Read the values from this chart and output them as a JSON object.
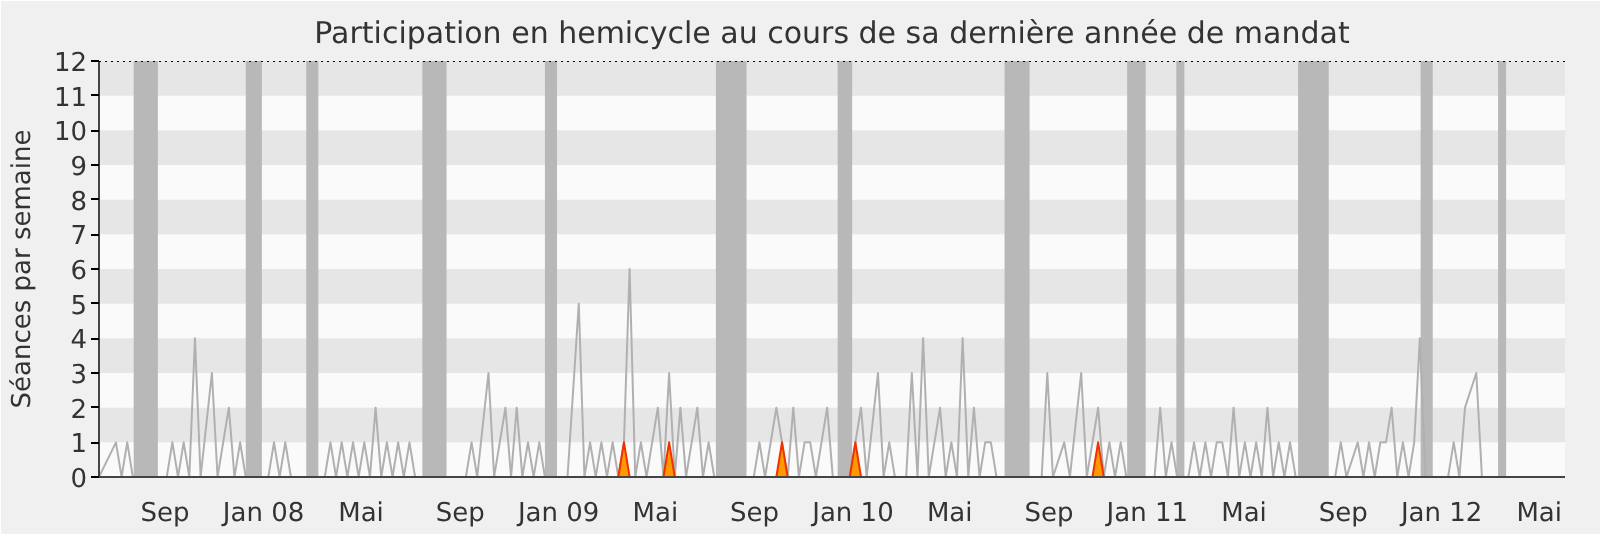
{
  "chart_data": {
    "type": "line",
    "title": "Participation en hemicycle au cours de sa dernière année de mandat",
    "ylabel": "Séances par semaine",
    "xlim": [
      "2007-06-11",
      "2012-06-02"
    ],
    "ylim": [
      0,
      12
    ],
    "yticks": [
      0,
      1,
      2,
      3,
      4,
      5,
      6,
      7,
      8,
      9,
      10,
      11,
      12
    ],
    "xticks": [
      {
        "value": "2007-09-01",
        "label": "Sep"
      },
      {
        "value": "2008-01-01",
        "label": "Jan 08"
      },
      {
        "value": "2008-05-01",
        "label": "Mai"
      },
      {
        "value": "2008-09-01",
        "label": "Sep"
      },
      {
        "value": "2009-01-01",
        "label": "Jan 09"
      },
      {
        "value": "2009-05-01",
        "label": "Mai"
      },
      {
        "value": "2009-09-01",
        "label": "Sep"
      },
      {
        "value": "2010-01-01",
        "label": "Jan 10"
      },
      {
        "value": "2010-05-01",
        "label": "Mai"
      },
      {
        "value": "2010-09-01",
        "label": "Sep"
      },
      {
        "value": "2011-01-01",
        "label": "Jan 11"
      },
      {
        "value": "2011-05-01",
        "label": "Mai"
      },
      {
        "value": "2011-09-01",
        "label": "Sep"
      },
      {
        "value": "2012-01-01",
        "label": "Jan 12"
      },
      {
        "value": "2012-05-01",
        "label": "Mai"
      }
    ],
    "series": [
      {
        "color": "#b0b0b0",
        "x": [
          "2007-06-11",
          "2007-07-02",
          "2007-07-09",
          "2007-07-16",
          "2007-07-23",
          "2007-09-03",
          "2007-09-10",
          "2007-09-17",
          "2007-09-24",
          "2007-10-01",
          "2007-10-08",
          "2007-10-15",
          "2007-10-29",
          "2007-11-05",
          "2007-11-19",
          "2007-11-26",
          "2007-12-03",
          "2007-12-10",
          "2008-01-07",
          "2008-01-14",
          "2008-01-21",
          "2008-01-28",
          "2008-02-04",
          "2008-03-17",
          "2008-03-24",
          "2008-03-31",
          "2008-04-07",
          "2008-04-14",
          "2008-04-21",
          "2008-04-28",
          "2008-05-05",
          "2008-05-12",
          "2008-05-19",
          "2008-05-26",
          "2008-06-02",
          "2008-06-09",
          "2008-06-16",
          "2008-06-23",
          "2008-06-30",
          "2008-07-07",
          "2008-09-08",
          "2008-09-15",
          "2008-09-22",
          "2008-10-06",
          "2008-10-13",
          "2008-10-27",
          "2008-11-03",
          "2008-11-10",
          "2008-11-17",
          "2008-11-24",
          "2008-12-01",
          "2008-12-08",
          "2008-12-15",
          "2009-01-12",
          "2009-01-26",
          "2009-02-02",
          "2009-02-09",
          "2009-02-16",
          "2009-02-23",
          "2009-03-02",
          "2009-03-09",
          "2009-03-16",
          "2009-03-23",
          "2009-03-30",
          "2009-04-06",
          "2009-04-13",
          "2009-04-20",
          "2009-05-04",
          "2009-05-11",
          "2009-05-18",
          "2009-05-25",
          "2009-06-01",
          "2009-06-08",
          "2009-06-22",
          "2009-06-29",
          "2009-07-06",
          "2009-07-13",
          "2009-08-31",
          "2009-09-07",
          "2009-09-14",
          "2009-09-28",
          "2009-10-05",
          "2009-10-12",
          "2009-10-19",
          "2009-10-26",
          "2009-11-02",
          "2009-11-09",
          "2009-11-16",
          "2009-11-30",
          "2009-12-07",
          "2009-12-28",
          "2010-01-04",
          "2010-01-11",
          "2010-01-18",
          "2010-02-01",
          "2010-02-08",
          "2010-02-15",
          "2010-02-22",
          "2010-03-08",
          "2010-03-15",
          "2010-03-22",
          "2010-03-29",
          "2010-04-05",
          "2010-04-19",
          "2010-04-26",
          "2010-05-03",
          "2010-05-10",
          "2010-05-17",
          "2010-05-24",
          "2010-05-31",
          "2010-06-07",
          "2010-06-14",
          "2010-06-21",
          "2010-06-28",
          "2010-08-23",
          "2010-08-30",
          "2010-09-06",
          "2010-09-20",
          "2010-09-27",
          "2010-10-11",
          "2010-10-18",
          "2010-11-01",
          "2010-11-08",
          "2010-11-15",
          "2010-11-22",
          "2010-11-29",
          "2010-12-06",
          "2011-01-10",
          "2011-01-17",
          "2011-01-24",
          "2011-01-31",
          "2011-02-07",
          "2011-02-21",
          "2011-02-28",
          "2011-03-07",
          "2011-03-14",
          "2011-03-21",
          "2011-03-28",
          "2011-04-04",
          "2011-04-11",
          "2011-04-18",
          "2011-04-25",
          "2011-05-02",
          "2011-05-09",
          "2011-05-16",
          "2011-05-23",
          "2011-05-30",
          "2011-06-06",
          "2011-06-13",
          "2011-06-20",
          "2011-06-27",
          "2011-07-04",
          "2011-08-22",
          "2011-08-29",
          "2011-09-05",
          "2011-09-19",
          "2011-09-26",
          "2011-10-03",
          "2011-10-10",
          "2011-10-17",
          "2011-10-24",
          "2011-10-31",
          "2011-11-07",
          "2011-11-14",
          "2011-11-21",
          "2011-11-28",
          "2011-12-05",
          "2011-12-12",
          "2012-01-09",
          "2012-01-16",
          "2012-01-23",
          "2012-01-30",
          "2012-02-13",
          "2012-02-20",
          "2012-05-28"
        ],
        "values": [
          0,
          1,
          0,
          1,
          0,
          0,
          1,
          0,
          1,
          0,
          4,
          0,
          3,
          0,
          2,
          0,
          1,
          0,
          0,
          1,
          0,
          1,
          0,
          0,
          1,
          0,
          1,
          0,
          1,
          0,
          1,
          0,
          2,
          0,
          1,
          0,
          1,
          0,
          1,
          0,
          0,
          1,
          0,
          3,
          0,
          2,
          0,
          2,
          0,
          1,
          0,
          1,
          0,
          0,
          5,
          0,
          1,
          0,
          1,
          0,
          1,
          0,
          1,
          6,
          0,
          1,
          0,
          2,
          0,
          3,
          0,
          2,
          0,
          2,
          0,
          1,
          0,
          0,
          1,
          0,
          2,
          1,
          0,
          2,
          0,
          1,
          1,
          0,
          2,
          0,
          0,
          1,
          2,
          0,
          3,
          0,
          1,
          0,
          0,
          3,
          0,
          4,
          0,
          2,
          0,
          1,
          0,
          4,
          0,
          2,
          0,
          1,
          1,
          0,
          0,
          3,
          0,
          1,
          0,
          3,
          0,
          2,
          0,
          1,
          0,
          1,
          0,
          0,
          2,
          0,
          1,
          0,
          0,
          1,
          0,
          1,
          0,
          1,
          1,
          0,
          2,
          0,
          1,
          0,
          1,
          0,
          2,
          0,
          1,
          0,
          1,
          0,
          0,
          1,
          0,
          1,
          0,
          1,
          0,
          1,
          1,
          2,
          0,
          1,
          0,
          1,
          4,
          0,
          0,
          1,
          0,
          2,
          3,
          0,
          0
        ]
      },
      {
        "type": "area",
        "color": "#ff9900",
        "x": [
          "2009-03-16",
          "2009-03-23",
          "2009-03-30",
          "2009-05-11",
          "2009-05-18",
          "2009-05-25",
          "2009-09-28",
          "2009-10-05",
          "2009-10-12",
          "2009-12-28",
          "2010-01-04",
          "2010-01-11",
          "2010-10-25",
          "2010-11-01",
          "2010-11-08"
        ],
        "values": [
          0,
          1,
          0,
          0,
          1,
          0,
          0,
          1,
          0,
          0,
          1,
          0,
          0,
          1,
          0
        ]
      }
    ],
    "bands": [
      {
        "axis": "x",
        "from": "2007-07-24",
        "to": "2007-08-23",
        "color": "#b8b8b8"
      },
      {
        "axis": "x",
        "from": "2007-12-10",
        "to": "2007-12-30",
        "color": "#b8b8b8"
      },
      {
        "axis": "x",
        "from": "2008-02-23",
        "to": "2008-03-09",
        "color": "#b8b8b8"
      },
      {
        "axis": "x",
        "from": "2008-07-16",
        "to": "2008-08-15",
        "color": "#b8b8b8"
      },
      {
        "axis": "x",
        "from": "2008-12-15",
        "to": "2008-12-30",
        "color": "#b8b8b8"
      },
      {
        "axis": "x",
        "from": "2009-07-15",
        "to": "2009-08-22",
        "color": "#b8b8b8"
      },
      {
        "axis": "x",
        "from": "2009-12-13",
        "to": "2009-12-31",
        "color": "#b8b8b8"
      },
      {
        "axis": "x",
        "from": "2010-07-08",
        "to": "2010-08-08",
        "color": "#b8b8b8"
      },
      {
        "axis": "x",
        "from": "2010-12-07",
        "to": "2010-12-30",
        "color": "#b8b8b8"
      },
      {
        "axis": "x",
        "from": "2011-02-06",
        "to": "2011-02-16",
        "color": "#b8b8b8"
      },
      {
        "axis": "x",
        "from": "2011-07-07",
        "to": "2011-08-14",
        "color": "#b8b8b8"
      },
      {
        "axis": "x",
        "from": "2011-12-06",
        "to": "2011-12-21",
        "color": "#b8b8b8"
      },
      {
        "axis": "x",
        "from": "2012-03-11",
        "to": "2012-03-21",
        "color": "#b8b8b8"
      }
    ],
    "ref_lines": [
      {
        "axis": "y",
        "value": 12,
        "color": "#000000",
        "line_style": "dotted"
      }
    ]
  }
}
